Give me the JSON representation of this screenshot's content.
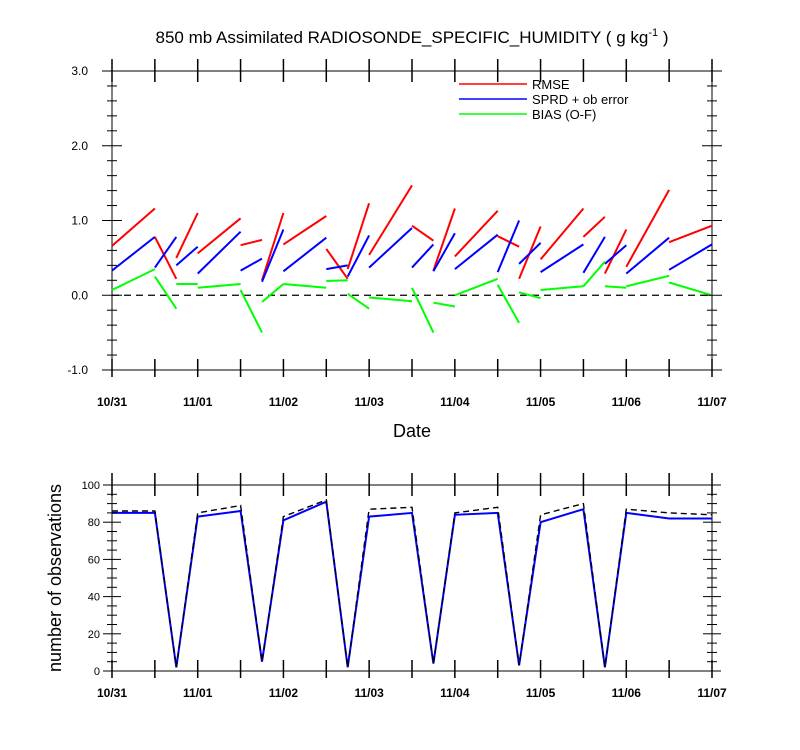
{
  "chart_data": [
    {
      "type": "line",
      "title_main": "850 mb Assimilated RADIOSONDE_SPECIFIC_HUMIDITY ( g kg",
      "title_sup": "-1",
      "title_end": " )",
      "xlabel": "Date",
      "ylabel": "",
      "xlim": [
        0,
        7
      ],
      "ylim": [
        -1.0,
        3.0
      ],
      "y_tick_labels": [
        "-1.0",
        "0.0",
        "1.0",
        "2.0",
        "3.0"
      ],
      "y_tick_values": [
        -1.0,
        0.0,
        1.0,
        2.0,
        3.0
      ],
      "x_tick_labels": [
        "10/31",
        "11/01",
        "11/02",
        "11/03",
        "11/04",
        "11/05",
        "11/06",
        "11/07"
      ],
      "x_tick_values": [
        0,
        1,
        2,
        3,
        4,
        5,
        6,
        7
      ],
      "reference_line": {
        "y": 0.0,
        "style": "dashed",
        "color": "#000000"
      },
      "legend_position": "top-right",
      "series": [
        {
          "name": "RMSE",
          "color": "#ff0000",
          "segments": [
            [
              [
                0.0,
                0.66
              ],
              [
                0.5,
                1.16
              ]
            ],
            [
              [
                0.5,
                0.78
              ],
              [
                0.75,
                0.22
              ]
            ],
            [
              [
                0.75,
                0.5
              ],
              [
                1.0,
                1.1
              ]
            ],
            [
              [
                1.0,
                0.56
              ],
              [
                1.5,
                1.03
              ]
            ],
            [
              [
                1.5,
                0.67
              ],
              [
                1.75,
                0.74
              ]
            ],
            [
              [
                1.75,
                0.2
              ],
              [
                2.0,
                1.1
              ]
            ],
            [
              [
                2.0,
                0.68
              ],
              [
                2.5,
                1.06
              ]
            ],
            [
              [
                2.5,
                0.62
              ],
              [
                2.75,
                0.22
              ]
            ],
            [
              [
                2.75,
                0.35
              ],
              [
                3.0,
                1.23
              ]
            ],
            [
              [
                3.0,
                0.54
              ],
              [
                3.5,
                1.47
              ]
            ],
            [
              [
                3.5,
                0.93
              ],
              [
                3.75,
                0.73
              ]
            ],
            [
              [
                3.75,
                0.33
              ],
              [
                4.0,
                1.16
              ]
            ],
            [
              [
                4.0,
                0.52
              ],
              [
                4.5,
                1.13
              ]
            ],
            [
              [
                4.5,
                0.79
              ],
              [
                4.75,
                0.65
              ]
            ],
            [
              [
                4.75,
                0.22
              ],
              [
                5.0,
                0.92
              ]
            ],
            [
              [
                5.0,
                0.48
              ],
              [
                5.5,
                1.16
              ]
            ],
            [
              [
                5.5,
                0.78
              ],
              [
                5.75,
                1.05
              ]
            ],
            [
              [
                5.75,
                0.29
              ],
              [
                6.0,
                0.88
              ]
            ],
            [
              [
                6.0,
                0.38
              ],
              [
                6.5,
                1.41
              ]
            ],
            [
              [
                6.5,
                0.71
              ],
              [
                7.0,
                0.93
              ]
            ]
          ]
        },
        {
          "name": "SPRD + ob error",
          "color": "#0000ff",
          "segments": [
            [
              [
                0.0,
                0.33
              ],
              [
                0.5,
                0.78
              ]
            ],
            [
              [
                0.5,
                0.37
              ],
              [
                0.75,
                0.78
              ]
            ],
            [
              [
                0.75,
                0.4
              ],
              [
                1.0,
                0.65
              ]
            ],
            [
              [
                1.0,
                0.29
              ],
              [
                1.5,
                0.85
              ]
            ],
            [
              [
                1.5,
                0.33
              ],
              [
                1.75,
                0.49
              ]
            ],
            [
              [
                1.75,
                0.18
              ],
              [
                2.0,
                0.88
              ]
            ],
            [
              [
                2.0,
                0.32
              ],
              [
                2.5,
                0.77
              ]
            ],
            [
              [
                2.5,
                0.35
              ],
              [
                2.75,
                0.4
              ]
            ],
            [
              [
                2.75,
                0.25
              ],
              [
                3.0,
                0.8
              ]
            ],
            [
              [
                3.0,
                0.37
              ],
              [
                3.5,
                0.9
              ]
            ],
            [
              [
                3.5,
                0.37
              ],
              [
                3.75,
                0.68
              ]
            ],
            [
              [
                3.75,
                0.32
              ],
              [
                4.0,
                0.83
              ]
            ],
            [
              [
                4.0,
                0.35
              ],
              [
                4.5,
                0.81
              ]
            ],
            [
              [
                4.5,
                0.31
              ],
              [
                4.75,
                1.0
              ]
            ],
            [
              [
                4.75,
                0.42
              ],
              [
                5.0,
                0.7
              ]
            ],
            [
              [
                5.0,
                0.31
              ],
              [
                5.5,
                0.68
              ]
            ],
            [
              [
                5.5,
                0.3
              ],
              [
                5.75,
                0.78
              ]
            ],
            [
              [
                5.75,
                0.42
              ],
              [
                6.0,
                0.67
              ]
            ],
            [
              [
                6.0,
                0.29
              ],
              [
                6.5,
                0.77
              ]
            ],
            [
              [
                6.5,
                0.34
              ],
              [
                7.0,
                0.68
              ]
            ]
          ]
        },
        {
          "name": "BIAS (O-F)",
          "color": "#00ff00",
          "segments": [
            [
              [
                0.0,
                0.07
              ],
              [
                0.5,
                0.35
              ]
            ],
            [
              [
                0.5,
                0.25
              ],
              [
                0.75,
                -0.18
              ]
            ],
            [
              [
                0.75,
                0.15
              ],
              [
                1.0,
                0.15
              ]
            ],
            [
              [
                1.0,
                0.1
              ],
              [
                1.5,
                0.15
              ]
            ],
            [
              [
                1.5,
                0.07
              ],
              [
                1.75,
                -0.5
              ]
            ],
            [
              [
                1.75,
                -0.09
              ],
              [
                2.0,
                0.15
              ]
            ],
            [
              [
                2.0,
                0.15
              ],
              [
                2.5,
                0.1
              ]
            ],
            [
              [
                2.5,
                0.19
              ],
              [
                2.75,
                0.2
              ]
            ],
            [
              [
                2.75,
                0.02
              ],
              [
                3.0,
                -0.18
              ]
            ],
            [
              [
                3.0,
                -0.03
              ],
              [
                3.5,
                -0.08
              ]
            ],
            [
              [
                3.5,
                0.1
              ],
              [
                3.75,
                -0.5
              ]
            ],
            [
              [
                3.75,
                -0.1
              ],
              [
                4.0,
                -0.15
              ]
            ],
            [
              [
                4.0,
                0.0
              ],
              [
                4.5,
                0.22
              ]
            ],
            [
              [
                4.5,
                0.14
              ],
              [
                4.75,
                -0.37
              ]
            ],
            [
              [
                4.75,
                0.04
              ],
              [
                5.0,
                -0.04
              ]
            ],
            [
              [
                5.0,
                0.07
              ],
              [
                5.5,
                0.12
              ]
            ],
            [
              [
                5.5,
                0.12
              ],
              [
                5.75,
                0.45
              ]
            ],
            [
              [
                5.75,
                0.12
              ],
              [
                6.0,
                0.1
              ]
            ],
            [
              [
                6.0,
                0.12
              ],
              [
                6.5,
                0.26
              ]
            ],
            [
              [
                6.5,
                0.17
              ],
              [
                7.0,
                0.0
              ]
            ]
          ]
        }
      ]
    },
    {
      "type": "line",
      "xlabel": "",
      "ylabel": "number of observations",
      "xlim": [
        0,
        7
      ],
      "ylim": [
        0,
        100
      ],
      "y_tick_labels": [
        "0",
        "20",
        "40",
        "60",
        "80",
        "100"
      ],
      "y_tick_values": [
        0,
        20,
        40,
        60,
        80,
        100
      ],
      "x_tick_labels": [
        "10/31",
        "11/01",
        "11/02",
        "11/03",
        "11/04",
        "11/05",
        "11/06",
        "11/07"
      ],
      "x_tick_values": [
        0,
        1,
        2,
        3,
        4,
        5,
        6,
        7
      ],
      "series": [
        {
          "color": "#0000ff",
          "style": "solid",
          "x": [
            0.0,
            0.5,
            0.75,
            1.0,
            1.5,
            1.75,
            2.0,
            2.5,
            2.75,
            3.0,
            3.5,
            3.75,
            4.0,
            4.5,
            4.75,
            5.0,
            5.5,
            5.75,
            6.0,
            6.5,
            7.0
          ],
          "y": [
            85,
            85,
            2,
            83,
            86,
            5,
            81,
            91,
            2,
            83,
            85,
            4,
            84,
            85,
            3,
            80,
            87,
            2,
            85,
            82,
            82
          ]
        },
        {
          "color": "#000000",
          "style": "dashed",
          "x": [
            0.0,
            0.5,
            0.75,
            1.0,
            1.5,
            1.75,
            2.0,
            2.5,
            2.75,
            3.0,
            3.5,
            3.75,
            4.0,
            4.5,
            4.75,
            5.0,
            5.5,
            5.75,
            6.0,
            6.5,
            7.0
          ],
          "y": [
            86,
            86,
            2,
            85,
            89,
            5,
            83,
            92,
            2,
            87,
            88,
            4,
            85,
            88,
            3,
            84,
            90,
            2,
            87,
            85,
            84
          ]
        }
      ]
    }
  ]
}
